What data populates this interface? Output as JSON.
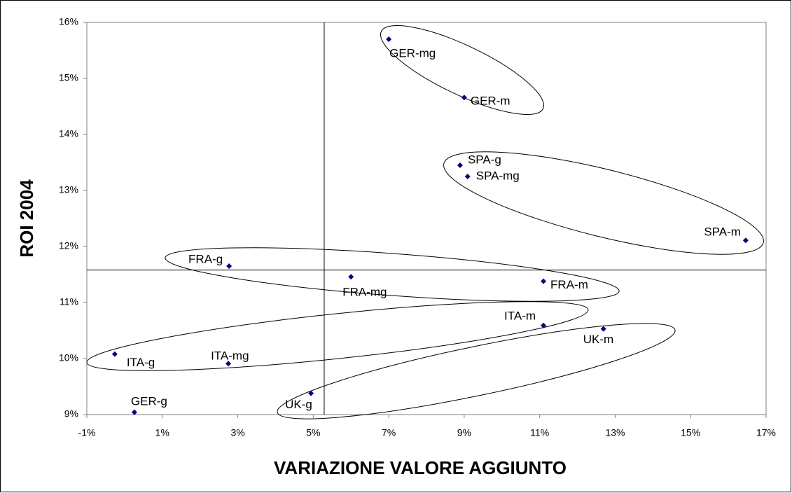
{
  "chart_data": {
    "type": "scatter",
    "x_label": "VARIAZIONE VALORE AGGIUNTO",
    "y_label": "ROI 2004",
    "color": "#000080",
    "points": [
      {
        "label": "GER-mg",
        "x": 7.0,
        "y": 15.7
      },
      {
        "label": "GER-m",
        "x": 9.0,
        "y": 14.66
      },
      {
        "label": "SPA-g",
        "x": 8.89,
        "y": 13.45
      },
      {
        "label": "SPA-mg",
        "x": 9.09,
        "y": 13.25
      },
      {
        "label": "SPA-m",
        "x": 16.46,
        "y": 12.11
      },
      {
        "label": "FRA-g",
        "x": 2.77,
        "y": 11.65
      },
      {
        "label": "FRA-mg",
        "x": 6.0,
        "y": 11.46
      },
      {
        "label": "FRA-m",
        "x": 11.1,
        "y": 11.38
      },
      {
        "label": "ITA-m",
        "x": 11.1,
        "y": 10.59
      },
      {
        "label": "UK-m",
        "x": 12.69,
        "y": 10.53
      },
      {
        "label": "ITA-g",
        "x": -0.26,
        "y": 10.08
      },
      {
        "label": "ITA-mg",
        "x": 2.75,
        "y": 9.91
      },
      {
        "label": "UK-g",
        "x": 4.94,
        "y": 9.38
      },
      {
        "label": "GER-g",
        "x": 0.26,
        "y": 9.04
      }
    ],
    "reference_lines": {
      "x": 5.29,
      "y": 11.58
    },
    "xlim": [
      -1,
      17
    ],
    "xticks": [
      {
        "value": -1,
        "label": "-1%"
      },
      {
        "value": 1,
        "label": "1%"
      },
      {
        "value": 3,
        "label": "3%"
      },
      {
        "value": 5,
        "label": "5%"
      },
      {
        "value": 7,
        "label": "7%"
      },
      {
        "value": 9,
        "label": "9%"
      },
      {
        "value": 11,
        "label": "11%"
      },
      {
        "value": 13,
        "label": "13%"
      },
      {
        "value": 15,
        "label": "15%"
      },
      {
        "value": 17,
        "label": "17%"
      }
    ],
    "ylim": [
      9,
      16
    ],
    "yticks": [
      {
        "value": 9,
        "label": "9%"
      },
      {
        "value": 10,
        "label": "10%"
      },
      {
        "value": 11,
        "label": "11%"
      },
      {
        "value": 12,
        "label": "12%"
      },
      {
        "value": 13,
        "label": "13%"
      },
      {
        "value": 14,
        "label": "14%"
      },
      {
        "value": 15,
        "label": "15%"
      },
      {
        "value": 16,
        "label": "16%"
      }
    ]
  }
}
